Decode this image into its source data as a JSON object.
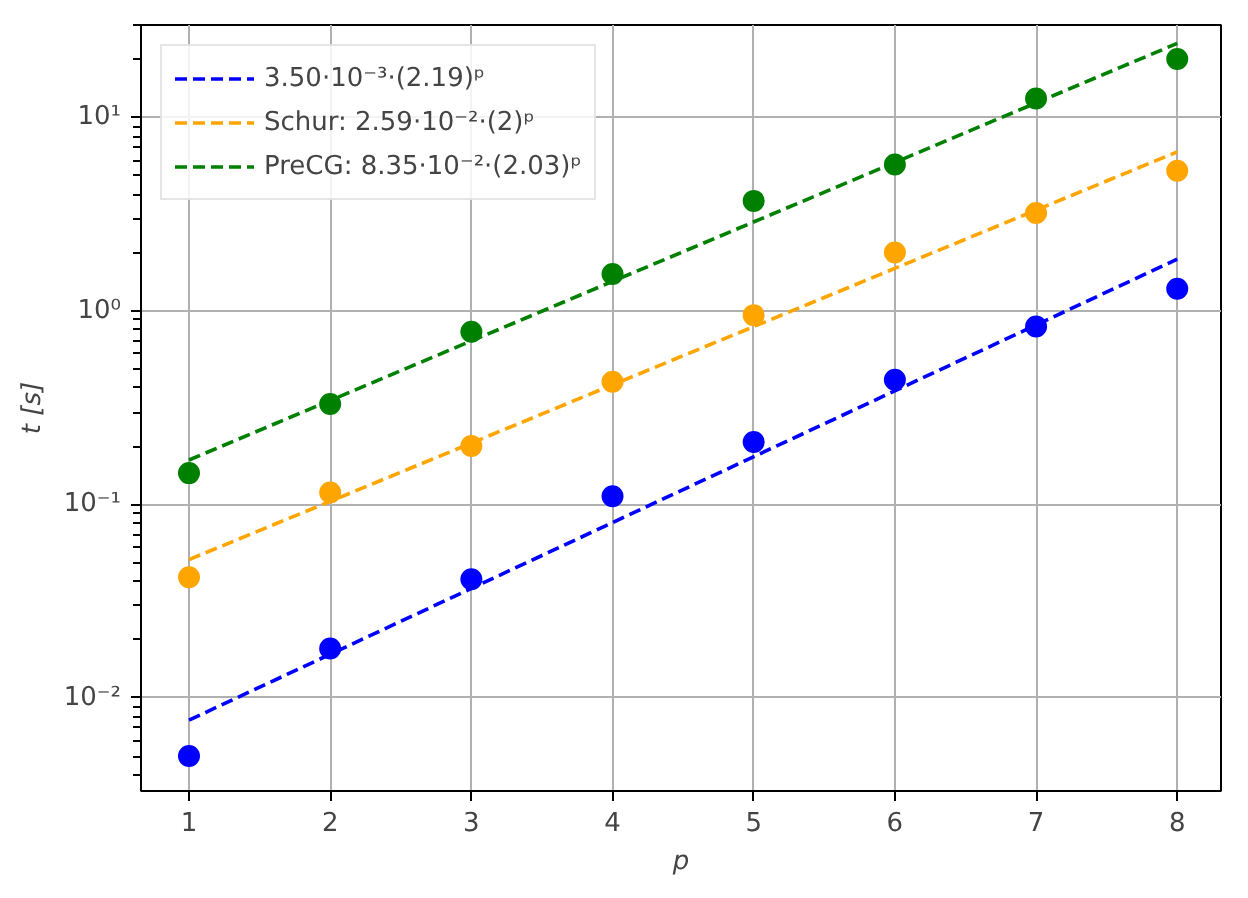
{
  "chart_data": {
    "type": "scatter",
    "xlabel": "p",
    "ylabel": "t [s]",
    "log": "y",
    "grid": true,
    "legend": "top left",
    "xlim": [
      0.66,
      8.31
    ],
    "xticks": [
      1,
      2,
      3,
      4,
      5,
      6,
      7,
      8
    ],
    "ylim": [
      0.0033,
      30
    ],
    "yticks": [
      {
        "value": 0.01,
        "label": "10⁻²"
      },
      {
        "value": 0.1,
        "label": "10⁻¹"
      },
      {
        "value": 1,
        "label": "10⁰"
      },
      {
        "value": 10,
        "label": "10¹"
      }
    ],
    "series": [
      {
        "type": "line",
        "name": "3.50·10⁻³·(2.19)ᵖ",
        "color": "#0000ff",
        "line_style": "dashed",
        "marker": "none",
        "x": [
          1,
          8
        ],
        "values": [
          0.00767,
          1.85
        ]
      },
      {
        "type": "line",
        "name": "Schur: 2.59·10⁻²·(2)ᵖ",
        "color": "#ffa500",
        "line_style": "dashed",
        "marker": "none",
        "x": [
          1,
          8
        ],
        "values": [
          0.0518,
          6.63
        ]
      },
      {
        "type": "line",
        "name": "PreCG: 8.35·10⁻²·(2.03)ᵖ",
        "color": "#008000",
        "line_style": "dashed",
        "marker": "none",
        "x": [
          1,
          8
        ],
        "values": [
          0.1695,
          24.1
        ]
      },
      {
        "color": "#0000ff",
        "marker": "circle",
        "x": [
          1,
          2,
          3,
          4,
          5,
          6,
          7,
          8
        ],
        "values": [
          0.005,
          0.018,
          0.041,
          0.11,
          0.21,
          0.44,
          0.83,
          1.3
        ]
      },
      {
        "color": "#ffa500",
        "marker": "circle",
        "x": [
          1,
          2,
          3,
          4,
          5,
          6,
          7,
          8
        ],
        "values": [
          0.042,
          0.115,
          0.2,
          0.43,
          0.95,
          2.0,
          3.2,
          5.3
        ]
      },
      {
        "color": "#008000",
        "marker": "circle",
        "x": [
          1,
          2,
          3,
          4,
          5,
          6,
          7,
          8
        ],
        "values": [
          0.145,
          0.33,
          0.78,
          1.55,
          3.7,
          5.7,
          12.5,
          20
        ]
      }
    ]
  }
}
